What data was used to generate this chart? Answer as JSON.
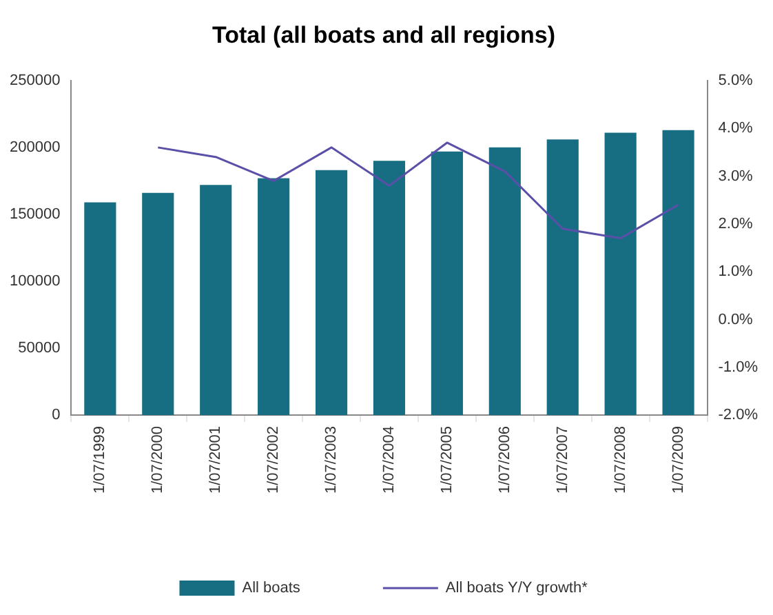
{
  "chart_data": {
    "type": "bar",
    "title": "Total (all boats and all regions)",
    "categories": [
      "1/07/1999",
      "1/07/2000",
      "1/07/2001",
      "1/07/2002",
      "1/07/2003",
      "1/07/2004",
      "1/07/2005",
      "1/07/2006",
      "1/07/2007",
      "1/07/2008",
      "1/07/2009"
    ],
    "series": [
      {
        "name": "All boats",
        "color": "#176e82",
        "values": [
          159000,
          166000,
          172000,
          177000,
          183000,
          190000,
          197000,
          200000,
          206000,
          211000,
          213000
        ]
      },
      {
        "name": "All boats Y/Y growth*",
        "type": "line",
        "axis": "y2",
        "color": "#5a50a8",
        "values": [
          null,
          3.6,
          3.4,
          2.9,
          3.6,
          2.8,
          3.7,
          3.1,
          1.9,
          1.7,
          2.4
        ]
      }
    ],
    "ylim": [
      0,
      250000
    ],
    "yticks": [
      0,
      50000,
      100000,
      150000,
      200000,
      250000
    ],
    "y2lim": [
      -2,
      5
    ],
    "y2ticks": [
      {
        "value": -2,
        "label": "-2.0%"
      },
      {
        "value": -1,
        "label": "-1.0%"
      },
      {
        "value": 0,
        "label": "0.0%"
      },
      {
        "value": 1,
        "label": "1.0%"
      },
      {
        "value": 2,
        "label": "2.0%"
      },
      {
        "value": 3,
        "label": "3.0%"
      },
      {
        "value": 4,
        "label": "4.0%"
      },
      {
        "value": 5,
        "label": "5.0%"
      }
    ],
    "grid": false,
    "legend": "bottom",
    "marker": "none"
  }
}
